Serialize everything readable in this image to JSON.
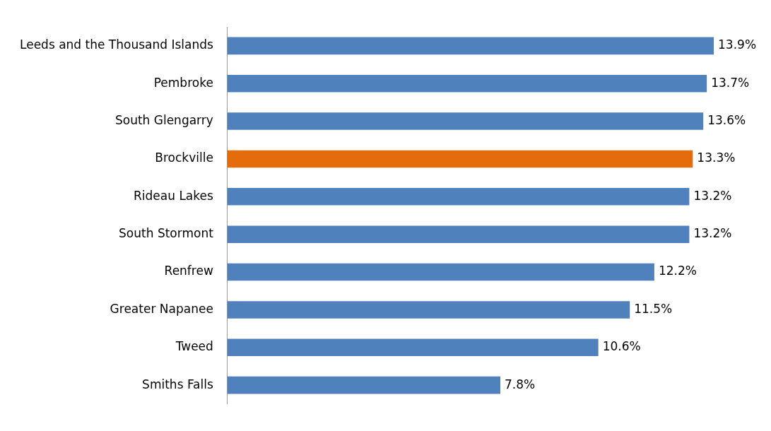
{
  "chart_data": {
    "type": "bar",
    "orientation": "horizontal",
    "categories": [
      "Leeds and the Thousand Islands",
      "Pembroke",
      "South Glengarry",
      "Brockville",
      "Rideau Lakes",
      "South Stormont",
      "Renfrew",
      "Greater Napanee",
      "Tweed",
      "Smiths Falls"
    ],
    "values": [
      13.9,
      13.7,
      13.6,
      13.3,
      13.2,
      13.2,
      12.2,
      11.5,
      10.6,
      7.8
    ],
    "colors": [
      "#4f81bd",
      "#4f81bd",
      "#4f81bd",
      "#e46c0a",
      "#4f81bd",
      "#4f81bd",
      "#4f81bd",
      "#4f81bd",
      "#4f81bd",
      "#4f81bd"
    ],
    "value_labels": [
      "13.9%",
      "13.7%",
      "13.6%",
      "13.3%",
      "13.2%",
      "13.2%",
      "12.2%",
      "11.5%",
      "10.6%",
      "7.8%"
    ],
    "tick_labels": "y",
    "grid": false,
    "legend": false
  }
}
